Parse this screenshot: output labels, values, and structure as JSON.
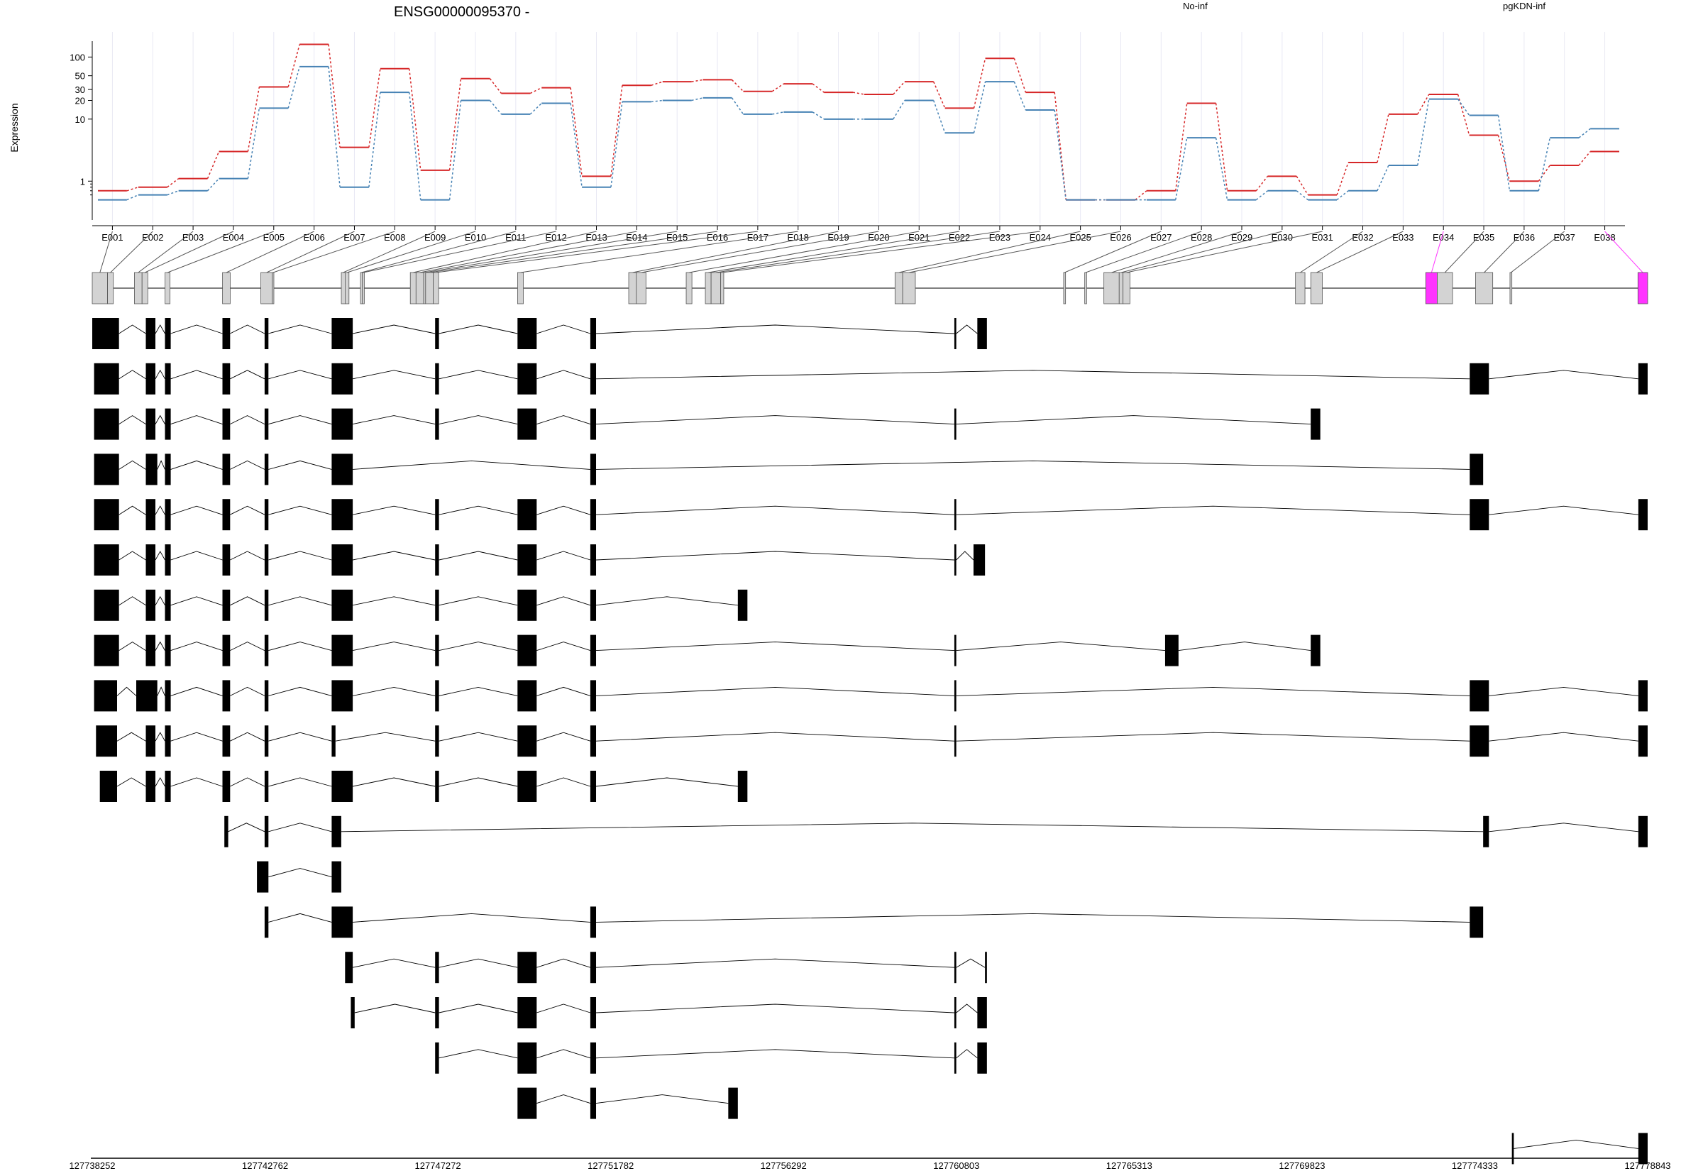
{
  "chart_data": {
    "type": "line",
    "title": "ENSG00000095370 -",
    "ylabel": "Expression",
    "y_scale": "log",
    "y_ticks": [
      "1",
      "10",
      "20",
      "30",
      "50",
      "100"
    ],
    "categories": [
      "E001",
      "E002",
      "E003",
      "E004",
      "E005",
      "E006",
      "E007",
      "E008",
      "E009",
      "E010",
      "E011",
      "E012",
      "E013",
      "E014",
      "E015",
      "E016",
      "E017",
      "E018",
      "E019",
      "E020",
      "E021",
      "E022",
      "E023",
      "E024",
      "E025",
      "E026",
      "E027",
      "E028",
      "E029",
      "E030",
      "E031",
      "E032",
      "E033",
      "E034",
      "E035",
      "E036",
      "E037",
      "E038"
    ],
    "series": [
      {
        "name": "No-inf",
        "color": "#d62728",
        "values": [
          0.7,
          0.8,
          1.1,
          3,
          33,
          160,
          3.5,
          65,
          1.5,
          45,
          26,
          32,
          1.2,
          35,
          40,
          43,
          28,
          37,
          27,
          25,
          40,
          15,
          95,
          27,
          0.5,
          0.5,
          0.7,
          18,
          0.7,
          1.2,
          0.6,
          2,
          12,
          25,
          5.5,
          1,
          1.8,
          3
        ]
      },
      {
        "name": "pgKDN-inf",
        "color": "#4682b4",
        "values": [
          0.5,
          0.6,
          0.7,
          1.1,
          15,
          70,
          0.8,
          27,
          0.5,
          20,
          12,
          18,
          0.8,
          19,
          20,
          22,
          12,
          13,
          10,
          10,
          20,
          6,
          40,
          14,
          0.5,
          0.5,
          0.5,
          5,
          0.5,
          0.7,
          0.5,
          0.7,
          1.8,
          21,
          11.5,
          0.7,
          5,
          7
        ]
      }
    ],
    "genomic_ticks": [
      "127738252",
      "127742762",
      "127747272",
      "127751782",
      "127756292",
      "127760803",
      "127765313",
      "127769823",
      "127774333",
      "127778843"
    ],
    "genomic_range": [
      127738252,
      127778843
    ],
    "highlight_color": "#ff33ff",
    "highlighted_exons": [
      "E034",
      "E038"
    ],
    "exon_genomic_spans": [
      [
        127738252,
        127738652
      ],
      [
        127738652,
        127738802
      ],
      [
        127739352,
        127739552
      ],
      [
        127739552,
        127739702
      ],
      [
        127740152,
        127740282
      ],
      [
        127741652,
        127741852
      ],
      [
        127742652,
        127742952
      ],
      [
        127742952,
        127742992
      ],
      [
        127744752,
        127744852
      ],
      [
        127744852,
        127744952
      ],
      [
        127745252,
        127745302
      ],
      [
        127745302,
        127745352
      ],
      [
        127746552,
        127746702
      ],
      [
        127746702,
        127746902
      ],
      [
        127746902,
        127746952
      ],
      [
        127746952,
        127747152
      ],
      [
        127747152,
        127747292
      ],
      [
        127749352,
        127749502
      ],
      [
        127752252,
        127752452
      ],
      [
        127752452,
        127752702
      ],
      [
        127753752,
        127753902
      ],
      [
        127754252,
        127754402
      ],
      [
        127754402,
        127754652
      ],
      [
        127754652,
        127754732
      ],
      [
        127759202,
        127759402
      ],
      [
        127759402,
        127759732
      ],
      [
        127763602,
        127763652
      ],
      [
        127764152,
        127764202
      ],
      [
        127764652,
        127765052
      ],
      [
        127765052,
        127765152
      ],
      [
        127765152,
        127765332
      ],
      [
        127769652,
        127769900
      ],
      [
        127770052,
        127770352
      ],
      [
        127773052,
        127773352
      ],
      [
        127773352,
        127773752
      ],
      [
        127774352,
        127774800
      ],
      [
        127775250,
        127775300
      ],
      [
        127778590,
        127778843
      ]
    ],
    "transcripts": [
      [
        [
          127738252,
          127738950
        ],
        [
          127739650,
          127739900
        ],
        [
          127740150,
          127740300
        ],
        [
          127741650,
          127741850
        ],
        [
          127742750,
          127742850
        ],
        [
          127744500,
          127745050
        ],
        [
          127747200,
          127747300
        ],
        [
          127749350,
          127749850
        ],
        [
          127751250,
          127751400
        ],
        [
          127760750,
          127760800
        ],
        [
          127761350,
          127761600
        ]
      ],
      [
        [
          127738300,
          127738950
        ],
        [
          127739650,
          127739900
        ],
        [
          127740150,
          127740300
        ],
        [
          127741650,
          127741850
        ],
        [
          127742750,
          127742850
        ],
        [
          127744500,
          127745050
        ],
        [
          127747200,
          127747300
        ],
        [
          127749350,
          127749850
        ],
        [
          127751250,
          127751400
        ],
        [
          127774200,
          127774700
        ],
        [
          127778600,
          127778843
        ]
      ],
      [
        [
          127738300,
          127738950
        ],
        [
          127739650,
          127739900
        ],
        [
          127740150,
          127740300
        ],
        [
          127741650,
          127741850
        ],
        [
          127742750,
          127742850
        ],
        [
          127744500,
          127745050
        ],
        [
          127747200,
          127747300
        ],
        [
          127749350,
          127749850
        ],
        [
          127751250,
          127751400
        ],
        [
          127760750,
          127760800
        ],
        [
          127770050,
          127770300
        ]
      ],
      [
        [
          127738300,
          127738950
        ],
        [
          127739650,
          127739950
        ],
        [
          127740150,
          127740300
        ],
        [
          127741650,
          127741850
        ],
        [
          127742750,
          127742850
        ],
        [
          127744500,
          127745050
        ],
        [
          127751250,
          127751400
        ],
        [
          127774200,
          127774550
        ]
      ],
      [
        [
          127738300,
          127738950
        ],
        [
          127739650,
          127739900
        ],
        [
          127740150,
          127740300
        ],
        [
          127741650,
          127741850
        ],
        [
          127742750,
          127742850
        ],
        [
          127744500,
          127745050
        ],
        [
          127747200,
          127747300
        ],
        [
          127749350,
          127749850
        ],
        [
          127751250,
          127751400
        ],
        [
          127760750,
          127760800
        ],
        [
          127774200,
          127774700
        ],
        [
          127778600,
          127778843
        ]
      ],
      [
        [
          127738300,
          127738950
        ],
        [
          127739650,
          127739900
        ],
        [
          127740150,
          127740300
        ],
        [
          127741650,
          127741850
        ],
        [
          127742750,
          127742850
        ],
        [
          127744500,
          127745050
        ],
        [
          127747200,
          127747300
        ],
        [
          127749350,
          127749850
        ],
        [
          127751250,
          127751400
        ],
        [
          127760750,
          127760800
        ],
        [
          127761250,
          127761550
        ]
      ],
      [
        [
          127738300,
          127738950
        ],
        [
          127739650,
          127739900
        ],
        [
          127740150,
          127740300
        ],
        [
          127741650,
          127741850
        ],
        [
          127742750,
          127742850
        ],
        [
          127744500,
          127745050
        ],
        [
          127747200,
          127747300
        ],
        [
          127749350,
          127749850
        ],
        [
          127751250,
          127751400
        ],
        [
          127755100,
          127755350
        ]
      ],
      [
        [
          127738300,
          127738950
        ],
        [
          127739650,
          127739900
        ],
        [
          127740150,
          127740300
        ],
        [
          127741650,
          127741850
        ],
        [
          127742750,
          127742850
        ],
        [
          127744500,
          127745050
        ],
        [
          127747200,
          127747300
        ],
        [
          127749350,
          127749850
        ],
        [
          127751250,
          127751400
        ],
        [
          127760750,
          127760800
        ],
        [
          127766250,
          127766600
        ],
        [
          127770050,
          127770300
        ]
      ],
      [
        [
          127738300,
          127738900
        ],
        [
          127739400,
          127739950
        ],
        [
          127740150,
          127740300
        ],
        [
          127741650,
          127741850
        ],
        [
          127742750,
          127742850
        ],
        [
          127744500,
          127745050
        ],
        [
          127747200,
          127747300
        ],
        [
          127749350,
          127749850
        ],
        [
          127751250,
          127751400
        ],
        [
          127760750,
          127760800
        ],
        [
          127774200,
          127774700
        ],
        [
          127778600,
          127778843
        ]
      ],
      [
        [
          127738350,
          127738900
        ],
        [
          127739650,
          127739900
        ],
        [
          127740150,
          127740300
        ],
        [
          127741650,
          127741850
        ],
        [
          127742750,
          127742850
        ],
        [
          127744500,
          127744600
        ],
        [
          127747200,
          127747300
        ],
        [
          127749350,
          127749850
        ],
        [
          127751250,
          127751400
        ],
        [
          127760750,
          127760800
        ],
        [
          127774200,
          127774700
        ],
        [
          127778600,
          127778843
        ]
      ],
      [
        [
          127738450,
          127738900
        ],
        [
          127739650,
          127739900
        ],
        [
          127740150,
          127740300
        ],
        [
          127741650,
          127741850
        ],
        [
          127742750,
          127742850
        ],
        [
          127744500,
          127745050
        ],
        [
          127747200,
          127747300
        ],
        [
          127749350,
          127749850
        ],
        [
          127751250,
          127751400
        ],
        [
          127755100,
          127755350
        ]
      ],
      [
        [
          127741700,
          127741800
        ],
        [
          127742750,
          127742850
        ],
        [
          127744500,
          127744750
        ],
        [
          127774550,
          127774700
        ],
        [
          127778600,
          127778843
        ]
      ],
      [
        [
          127742550,
          127742850
        ],
        [
          127744500,
          127744750
        ]
      ],
      [
        [
          127742750,
          127742850
        ],
        [
          127744500,
          127745050
        ],
        [
          127751250,
          127751400
        ],
        [
          127774200,
          127774550
        ]
      ],
      [
        [
          127744850,
          127745050
        ],
        [
          127747200,
          127747300
        ],
        [
          127749350,
          127749850
        ],
        [
          127751250,
          127751400
        ],
        [
          127760750,
          127760800
        ],
        [
          127761550,
          127761600
        ]
      ],
      [
        [
          127745000,
          127745100
        ],
        [
          127747200,
          127747300
        ],
        [
          127749350,
          127749850
        ],
        [
          127751250,
          127751400
        ],
        [
          127760750,
          127760800
        ],
        [
          127761350,
          127761600
        ]
      ],
      [
        [
          127747200,
          127747300
        ],
        [
          127749350,
          127749850
        ],
        [
          127751250,
          127751400
        ],
        [
          127760750,
          127760800
        ],
        [
          127761350,
          127761600
        ]
      ],
      [
        [
          127749350,
          127749850
        ],
        [
          127751250,
          127751400
        ],
        [
          127754850,
          127755100
        ]
      ],
      [
        [
          127775300,
          127775350
        ],
        [
          127778600,
          127778843
        ]
      ]
    ]
  }
}
